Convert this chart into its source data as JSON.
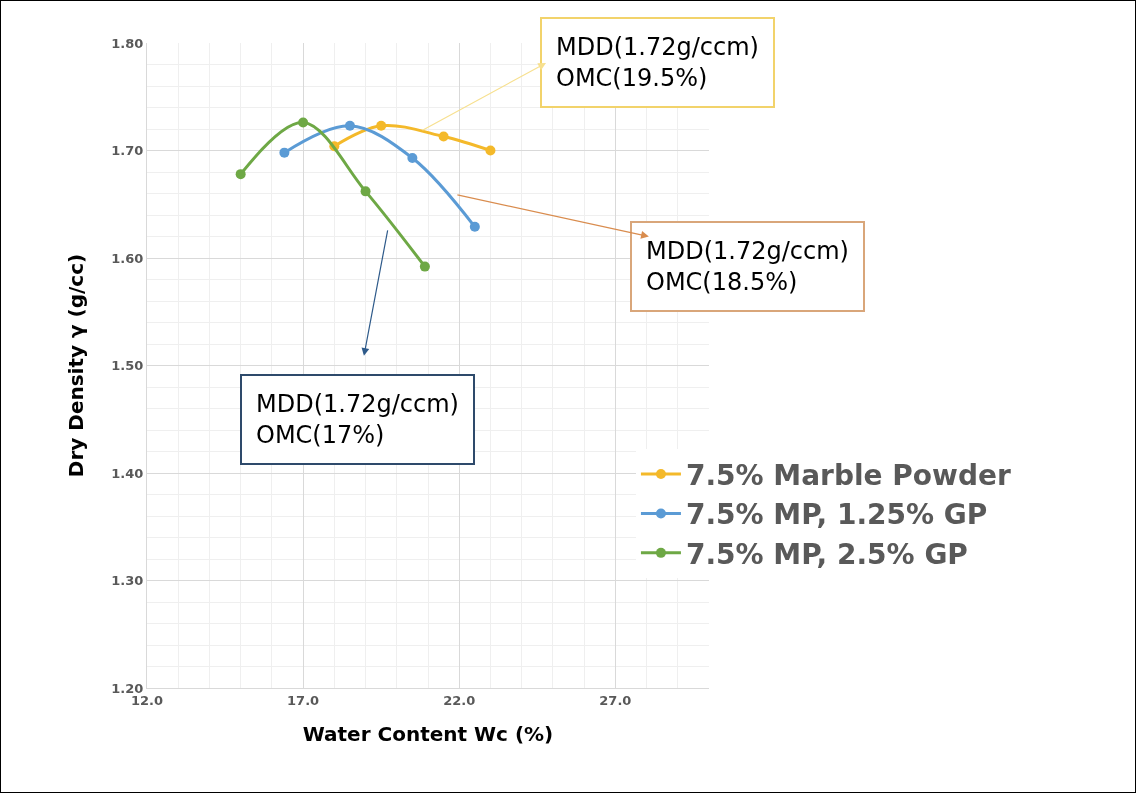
{
  "chart_data": {
    "type": "line",
    "xlabel": "Water Content Wc (%)",
    "ylabel": "Dry Density γ (g/cc)",
    "xlim": [
      12,
      30
    ],
    "xticks": [
      {
        "value": 12,
        "label": "12.0"
      },
      {
        "value": 17,
        "label": "17.0"
      },
      {
        "value": 22,
        "label": "22.0"
      },
      {
        "value": 27,
        "label": "27.0"
      }
    ],
    "ylim": [
      1.2,
      1.8
    ],
    "yticks": [
      {
        "value": 1.2,
        "label": "1.20"
      },
      {
        "value": 1.3,
        "label": "1.30"
      },
      {
        "value": 1.4,
        "label": "1.40"
      },
      {
        "value": 1.5,
        "label": "1.50"
      },
      {
        "value": 1.6,
        "label": "1.60"
      },
      {
        "value": 1.7,
        "label": "1.70"
      },
      {
        "value": 1.8,
        "label": "1.80"
      }
    ],
    "grid": true,
    "legend": "right",
    "marker": "circle",
    "line_style": "solid",
    "series": [
      {
        "name": "7.5% Marble Powder",
        "color": "#f4b92a",
        "x": [
          18,
          19.5,
          21.5,
          23
        ],
        "values": [
          1.704,
          1.723,
          1.713,
          1.7
        ]
      },
      {
        "name": "7.5% MP, 1.25% GP",
        "color": "#5b9bd5",
        "x": [
          16.4,
          18.5,
          20.5,
          22.5
        ],
        "values": [
          1.698,
          1.723,
          1.693,
          1.629
        ]
      },
      {
        "name": "7.5% MP, 2.5% GP",
        "color": "#6ea845",
        "x": [
          15,
          17,
          19,
          20.9
        ],
        "values": [
          1.678,
          1.726,
          1.662,
          1.592
        ]
      }
    ],
    "annotations": [
      "MDD(1.72g/ccm)\nOMC(19.5%)",
      "MDD(1.72g/ccm)\nOMC(18.5%)",
      "MDD(1.72g/ccm)\nOMC(17%)"
    ]
  }
}
